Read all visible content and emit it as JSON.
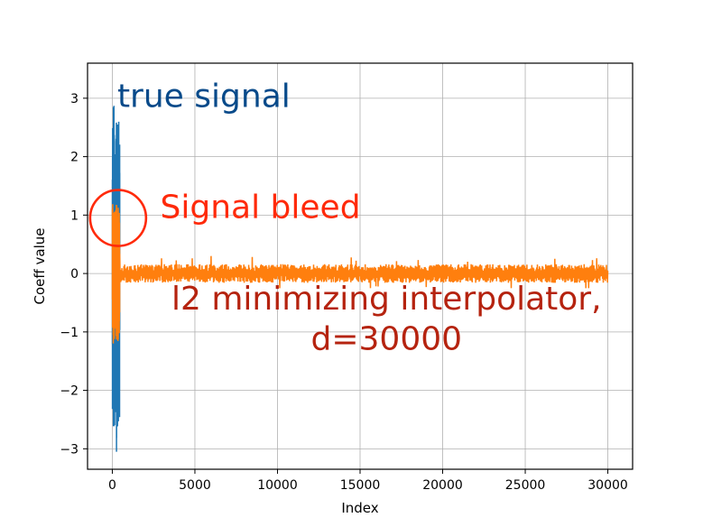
{
  "chart_data": {
    "type": "line",
    "title": "",
    "xlabel": "Index",
    "ylabel": "Coeff value",
    "xlim": [
      -1500,
      31500
    ],
    "ylim": [
      -3.35,
      3.6
    ],
    "xticks": [
      0,
      5000,
      10000,
      15000,
      20000,
      25000,
      30000
    ],
    "xtick_labels": [
      "0",
      "5000",
      "10000",
      "15000",
      "20000",
      "25000",
      "30000"
    ],
    "yticks": [
      -3,
      -2,
      -1,
      0,
      1,
      2,
      3
    ],
    "ytick_labels": [
      "−3",
      "−2",
      "−1",
      "0",
      "1",
      "2",
      "3"
    ],
    "grid": true,
    "series": [
      {
        "color": "#1f77b4",
        "description_x_range": [
          0,
          450
        ],
        "y_extent": [
          -3.05,
          3.28
        ]
      },
      {
        "color": "#ff7f0e",
        "description_x_range": [
          0,
          30000
        ],
        "y_extent_head": [
          -1.2,
          1.3
        ],
        "y_extent_tail": [
          -0.25,
          0.3
        ]
      }
    ],
    "annotations": [
      {
        "text": "true signal",
        "x": 300,
        "y": 2.85,
        "color": "#084a8a",
        "size": 36
      },
      {
        "text": "Signal bleed",
        "x": 2900,
        "y": 0.95,
        "color": "#ff2a0a",
        "size": 36
      },
      {
        "text": "l2 minimizing interpolator,",
        "x": 16600,
        "y": -0.62,
        "color": "#b5230f",
        "size": 36
      },
      {
        "text": "d=30000",
        "x": 16600,
        "y": -1.3,
        "color": "#b5230f",
        "size": 36
      }
    ],
    "circle": {
      "x": 350,
      "y": 0.95,
      "color": "#ff2a0a"
    }
  }
}
